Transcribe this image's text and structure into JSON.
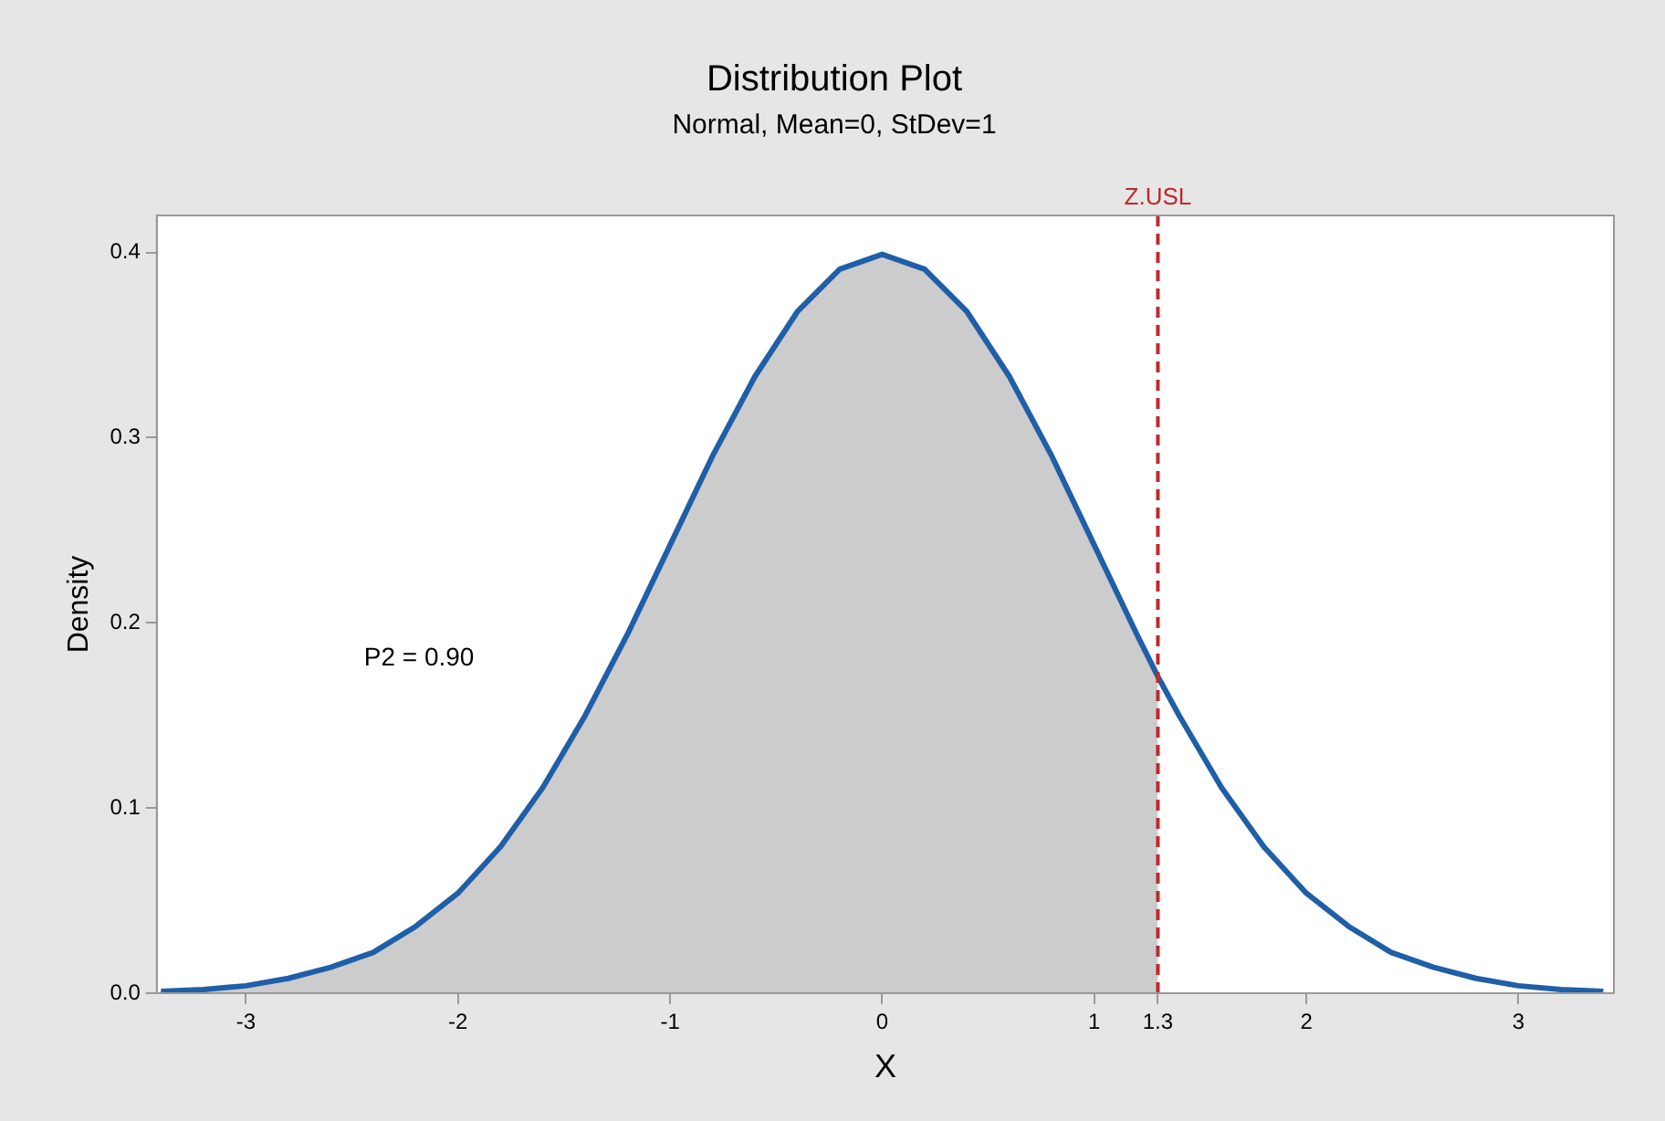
{
  "chart_data": {
    "type": "line",
    "title": "Distribution Plot",
    "subtitle": "Normal, Mean=0, StDev=1",
    "xlabel": "X",
    "ylabel": "Density",
    "xlim": [
      -3.42,
      3.45
    ],
    "ylim": [
      0,
      0.42
    ],
    "xticks": [
      -3,
      -2,
      -1,
      0,
      1,
      {
        "value": 1.3,
        "label": "1.3"
      },
      2,
      3
    ],
    "yticks": [
      {
        "value": 0,
        "label": "0.0"
      },
      0.1,
      0.2,
      0.3,
      0.4
    ],
    "grid": false,
    "legend": false,
    "marker": "none",
    "line_style": "solid",
    "series": [
      {
        "type": "area",
        "color": "#cccccc",
        "x": [
          -3.4,
          -3.2,
          -3.0,
          -2.8,
          -2.6,
          -2.4,
          -2.2,
          -2.0,
          -1.8,
          -1.6,
          -1.4,
          -1.2,
          -1.0,
          -0.8,
          -0.6,
          -0.4,
          -0.2,
          0,
          0.2,
          0.4,
          0.6,
          0.8,
          1.0,
          1.2,
          1.3
        ],
        "values": [
          0.001,
          0.002,
          0.004,
          0.008,
          0.014,
          0.022,
          0.036,
          0.054,
          0.079,
          0.111,
          0.15,
          0.194,
          0.242,
          0.29,
          0.333,
          0.368,
          0.391,
          0.399,
          0.391,
          0.368,
          0.333,
          0.29,
          0.242,
          0.194,
          0.171
        ]
      },
      {
        "color": "#1f5fa8",
        "x": [
          -3.4,
          -3.2,
          -3.0,
          -2.8,
          -2.6,
          -2.4,
          -2.2,
          -2.0,
          -1.8,
          -1.6,
          -1.4,
          -1.2,
          -1.0,
          -0.8,
          -0.6,
          -0.4,
          -0.2,
          0,
          0.2,
          0.4,
          0.6,
          0.8,
          1.0,
          1.2,
          1.3,
          1.4,
          1.6,
          1.8,
          2.0,
          2.2,
          2.4,
          2.6,
          2.8,
          3.0,
          3.2,
          3.4
        ],
        "values": [
          0.001,
          0.002,
          0.004,
          0.008,
          0.014,
          0.022,
          0.036,
          0.054,
          0.079,
          0.111,
          0.15,
          0.194,
          0.242,
          0.29,
          0.333,
          0.368,
          0.391,
          0.399,
          0.391,
          0.368,
          0.333,
          0.29,
          0.242,
          0.194,
          0.171,
          0.15,
          0.111,
          0.079,
          0.054,
          0.036,
          0.022,
          0.014,
          0.008,
          0.004,
          0.002,
          0.001
        ]
      }
    ],
    "ref_lines": [
      {
        "axis": "x",
        "value": 1.3,
        "label": "Z.USL",
        "color": "#c0282d",
        "line_style": "dashed"
      }
    ],
    "annotations": [
      "P2 = 0.90"
    ]
  }
}
